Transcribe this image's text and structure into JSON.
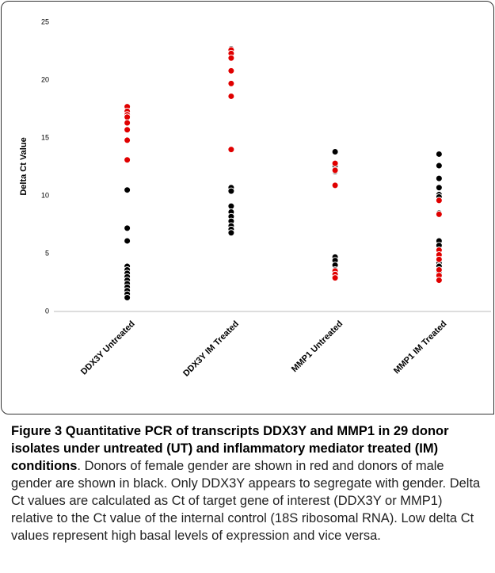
{
  "chart_data": {
    "type": "strip",
    "ylabel": "Delta Ct Value",
    "categories": [
      "DDX3Y Untreated",
      "DDX3Y IM  Treated",
      "MMP1 Untreated",
      "MMP1 IM Treated"
    ],
    "ylim": [
      0,
      25
    ],
    "yticks": [
      0,
      5,
      10,
      15,
      20,
      25
    ],
    "series": [
      {
        "color": "#000000",
        "x": [
          "DDX3Y Untreated",
          "DDX3Y Untreated",
          "DDX3Y Untreated",
          "DDX3Y Untreated",
          "DDX3Y Untreated",
          "DDX3Y Untreated",
          "DDX3Y Untreated",
          "DDX3Y Untreated",
          "DDX3Y Untreated",
          "DDX3Y Untreated",
          "DDX3Y Untreated",
          "DDX3Y Untreated",
          "DDX3Y Untreated",
          "DDX3Y IM  Treated",
          "DDX3Y IM  Treated",
          "DDX3Y IM  Treated",
          "DDX3Y IM  Treated",
          "DDX3Y IM  Treated",
          "DDX3Y IM  Treated",
          "DDX3Y IM  Treated",
          "DDX3Y IM  Treated",
          "DDX3Y IM  Treated",
          "DDX3Y IM  Treated",
          "MMP1 Untreated",
          "MMP1 Untreated",
          "MMP1 Untreated",
          "MMP1 Untreated",
          "MMP1 Untreated",
          "MMP1 Untreated",
          "MMP1 Untreated",
          "MMP1 Untreated",
          "MMP1 IM Treated",
          "MMP1 IM Treated",
          "MMP1 IM Treated",
          "MMP1 IM Treated",
          "MMP1 IM Treated",
          "MMP1 IM Treated",
          "MMP1 IM Treated",
          "MMP1 IM Treated",
          "MMP1 IM Treated",
          "MMP1 IM Treated",
          "MMP1 IM Treated",
          "MMP1 IM Treated",
          "MMP1 IM Treated"
        ],
        "values": [
          10.5,
          7.2,
          6.1,
          3.9,
          3.6,
          3.3,
          3.0,
          2.7,
          2.4,
          2.1,
          1.8,
          1.5,
          1.2,
          22.7,
          10.7,
          10.4,
          9.1,
          8.6,
          8.2,
          7.8,
          7.4,
          7.1,
          6.8,
          13.8,
          12.6,
          12.1,
          4.7,
          4.4,
          4.0,
          3.6,
          3.1,
          13.6,
          12.6,
          11.5,
          10.7,
          10.1,
          9.9,
          8.5,
          6.1,
          5.7,
          5.3,
          4.2,
          3.9,
          3.4
        ]
      },
      {
        "color": "#e00000",
        "x": [
          "DDX3Y Untreated",
          "DDX3Y Untreated",
          "DDX3Y Untreated",
          "DDX3Y Untreated",
          "DDX3Y Untreated",
          "DDX3Y Untreated",
          "DDX3Y Untreated",
          "DDX3Y Untreated",
          "DDX3Y IM  Treated",
          "DDX3Y IM  Treated",
          "DDX3Y IM  Treated",
          "DDX3Y IM  Treated",
          "DDX3Y IM  Treated",
          "DDX3Y IM  Treated",
          "DDX3Y IM  Treated",
          "MMP1 Untreated",
          "MMP1 Untreated",
          "MMP1 Untreated",
          "MMP1 Untreated",
          "MMP1 Untreated",
          "MMP1 Untreated",
          "MMP1 IM Treated",
          "MMP1 IM Treated",
          "MMP1 IM Treated",
          "MMP1 IM Treated",
          "MMP1 IM Treated",
          "MMP1 IM Treated",
          "MMP1 IM Treated",
          "MMP1 IM Treated"
        ],
        "values": [
          17.7,
          17.3,
          17.0,
          16.8,
          16.3,
          15.7,
          14.8,
          13.1,
          22.6,
          22.3,
          21.9,
          20.8,
          19.7,
          18.6,
          14.0,
          12.8,
          12.2,
          10.9,
          3.5,
          3.2,
          2.9,
          9.6,
          8.4,
          5.3,
          4.9,
          4.5,
          3.6,
          3.1,
          2.7
        ]
      }
    ]
  },
  "caption": {
    "title": "Figure 3 Quantitative PCR of transcripts DDX3Y and MMP1 in 29 donor isolates under untreated (UT) and inflammatory mediator treated (IM) conditions",
    "text": ". Donors of female gender are shown in red and donors of male gender are shown in black. Only DDX3Y appears to segregate with gender. Delta Ct values are calculated as Ct of target gene of interest (DDX3Y or MMP1) relative to the Ct value of the internal control (18S ribosomal RNA). Low delta Ct values represent high basal levels of expression and vice versa."
  }
}
